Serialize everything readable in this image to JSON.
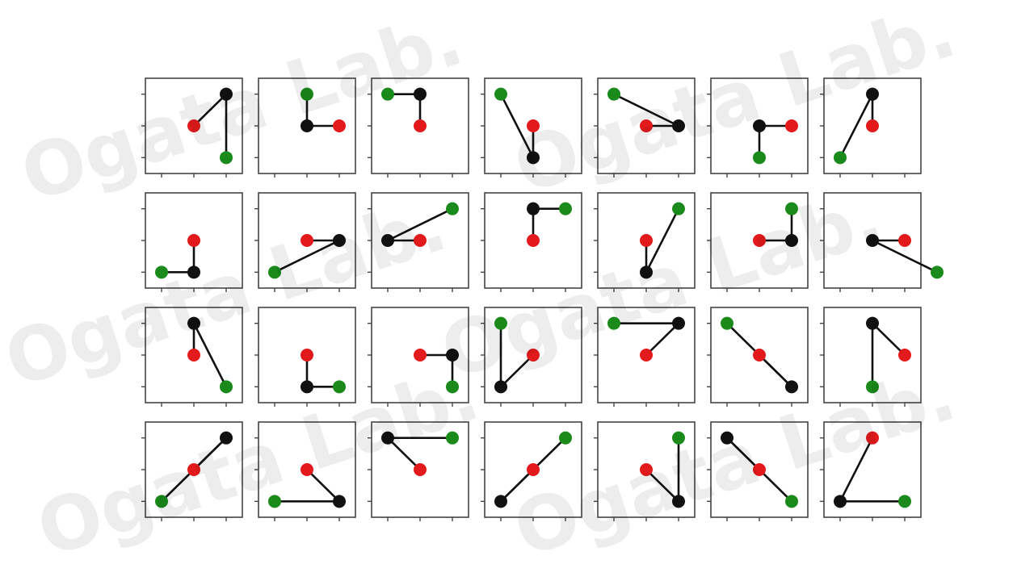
{
  "chart_data": {
    "type": "scatter",
    "grid": {
      "rows": 4,
      "cols": 7
    },
    "title": "",
    "xlabel": "",
    "ylabel": "",
    "xlim": [
      -1.5,
      1.5
    ],
    "ylim": [
      -1.5,
      1.5
    ],
    "tick_labels_shown": false,
    "colors": {
      "red": "#e31a1c",
      "black": "#111111",
      "green": "#1a8a1a",
      "frame": "#444444"
    },
    "panels": [
      {
        "red": [
          0,
          0
        ],
        "black": [
          1,
          1
        ],
        "green": [
          1,
          -1
        ]
      },
      {
        "red": [
          1,
          0
        ],
        "black": [
          0,
          0
        ],
        "green": [
          0,
          1
        ]
      },
      {
        "red": [
          0,
          0
        ],
        "black": [
          0,
          1
        ],
        "green": [
          -1,
          1
        ]
      },
      {
        "red": [
          0,
          0
        ],
        "black": [
          0,
          -1
        ],
        "green": [
          -1,
          1
        ]
      },
      {
        "red": [
          0,
          0
        ],
        "black": [
          1,
          0
        ],
        "green": [
          -1,
          1
        ]
      },
      {
        "red": [
          1,
          0
        ],
        "black": [
          0,
          0
        ],
        "green": [
          0,
          -1
        ]
      },
      {
        "red": [
          0,
          0
        ],
        "black": [
          0,
          1
        ],
        "green": [
          -1,
          -1
        ]
      },
      {
        "red": [
          0,
          0
        ],
        "black": [
          0,
          -1
        ],
        "green": [
          -1,
          -1
        ]
      },
      {
        "red": [
          0,
          0
        ],
        "black": [
          1,
          0
        ],
        "green": [
          -1,
          -1
        ]
      },
      {
        "red": [
          0,
          0
        ],
        "black": [
          -1,
          0
        ],
        "green": [
          1,
          1
        ]
      },
      {
        "red": [
          0,
          0
        ],
        "black": [
          0,
          1
        ],
        "green": [
          1,
          1
        ]
      },
      {
        "red": [
          0,
          0
        ],
        "black": [
          0,
          -1
        ],
        "green": [
          1,
          1
        ]
      },
      {
        "red": [
          0,
          0
        ],
        "black": [
          1,
          0
        ],
        "green": [
          1,
          1
        ]
      },
      {
        "red": [
          1,
          0
        ],
        "black": [
          0,
          0
        ],
        "green": [
          2,
          -1
        ]
      },
      {
        "red": [
          0,
          0
        ],
        "black": [
          0,
          1
        ],
        "green": [
          1,
          -1
        ]
      },
      {
        "red": [
          0,
          0
        ],
        "black": [
          0,
          -1
        ],
        "green": [
          1,
          -1
        ]
      },
      {
        "red": [
          0,
          0
        ],
        "black": [
          1,
          0
        ],
        "green": [
          1,
          -1
        ]
      },
      {
        "red": [
          0,
          0
        ],
        "black": [
          -1,
          -1
        ],
        "green": [
          -1,
          1
        ]
      },
      {
        "red": [
          0,
          0
        ],
        "black": [
          1,
          1
        ],
        "green": [
          -1,
          1
        ]
      },
      {
        "red": [
          0,
          0
        ],
        "black": [
          1,
          -1
        ],
        "green": [
          -1,
          1
        ]
      },
      {
        "red": [
          1,
          0
        ],
        "black": [
          0,
          1
        ],
        "green": [
          0,
          -1
        ]
      },
      {
        "red": [
          0,
          0
        ],
        "black": [
          1,
          1
        ],
        "green": [
          -1,
          -1
        ]
      },
      {
        "red": [
          0,
          0
        ],
        "black": [
          1,
          -1
        ],
        "green": [
          -1,
          -1
        ]
      },
      {
        "red": [
          0,
          0
        ],
        "black": [
          -1,
          1
        ],
        "green": [
          1,
          1
        ]
      },
      {
        "red": [
          0,
          0
        ],
        "black": [
          -1,
          -1
        ],
        "green": [
          1,
          1
        ]
      },
      {
        "red": [
          0,
          0
        ],
        "black": [
          1,
          -1
        ],
        "green": [
          1,
          1
        ]
      },
      {
        "red": [
          0,
          0
        ],
        "black": [
          -1,
          1
        ],
        "green": [
          1,
          -1
        ]
      },
      {
        "red": [
          0,
          1
        ],
        "black": [
          -1,
          -1
        ],
        "green": [
          1,
          -1
        ]
      }
    ]
  },
  "watermark": {
    "text": "Ogata Lab."
  }
}
